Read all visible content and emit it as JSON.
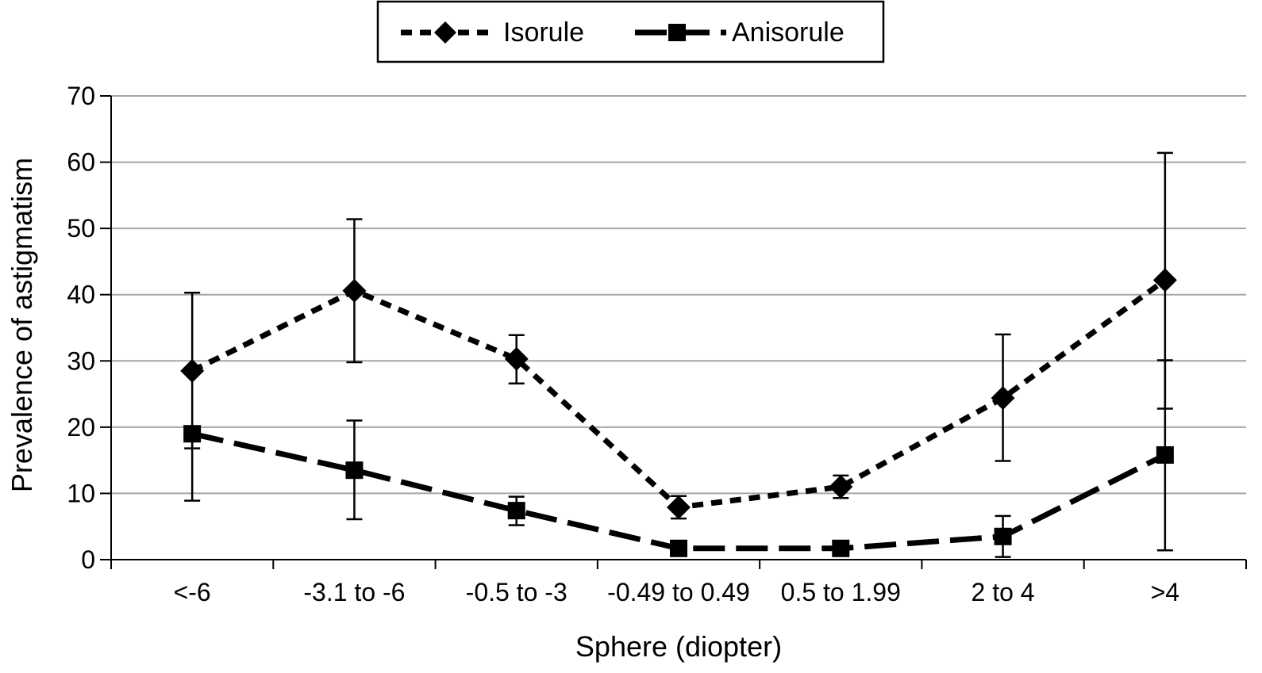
{
  "chart_data": {
    "type": "line",
    "title": "",
    "xlabel": "Sphere (diopter)",
    "ylabel": "Prevalence of astigmatism",
    "ylim": [
      0,
      70
    ],
    "yticks": [
      "0",
      "10",
      "20",
      "30",
      "40",
      "50",
      "60",
      "70"
    ],
    "categories": [
      "<-6",
      "-3.1 to -6",
      "-0.5 to -3",
      "-0.49 to 0.49",
      "0.5 to 1.99",
      "2 to 4",
      ">4"
    ],
    "grid": true,
    "legend_position": "top-center",
    "series": [
      {
        "name": "Isorule",
        "marker": "diamond",
        "line_style": "short-dash",
        "values": [
          28.5,
          40.6,
          30.3,
          7.9,
          11.0,
          24.4,
          42.2
        ],
        "error_low": [
          16.8,
          29.8,
          26.6,
          6.2,
          9.3,
          14.9,
          22.8
        ],
        "error_high": [
          40.3,
          51.4,
          33.9,
          9.6,
          12.7,
          34.0,
          61.4
        ]
      },
      {
        "name": "Anisorule",
        "marker": "square",
        "line_style": "long-dash",
        "values": [
          19.0,
          13.5,
          7.4,
          1.7,
          1.7,
          3.5,
          15.8
        ],
        "error_low": [
          8.9,
          6.1,
          5.2,
          1.7,
          1.7,
          0.4,
          1.4
        ],
        "error_high": [
          19.0,
          21.0,
          9.5,
          1.7,
          1.7,
          6.6,
          30.1
        ]
      }
    ]
  }
}
